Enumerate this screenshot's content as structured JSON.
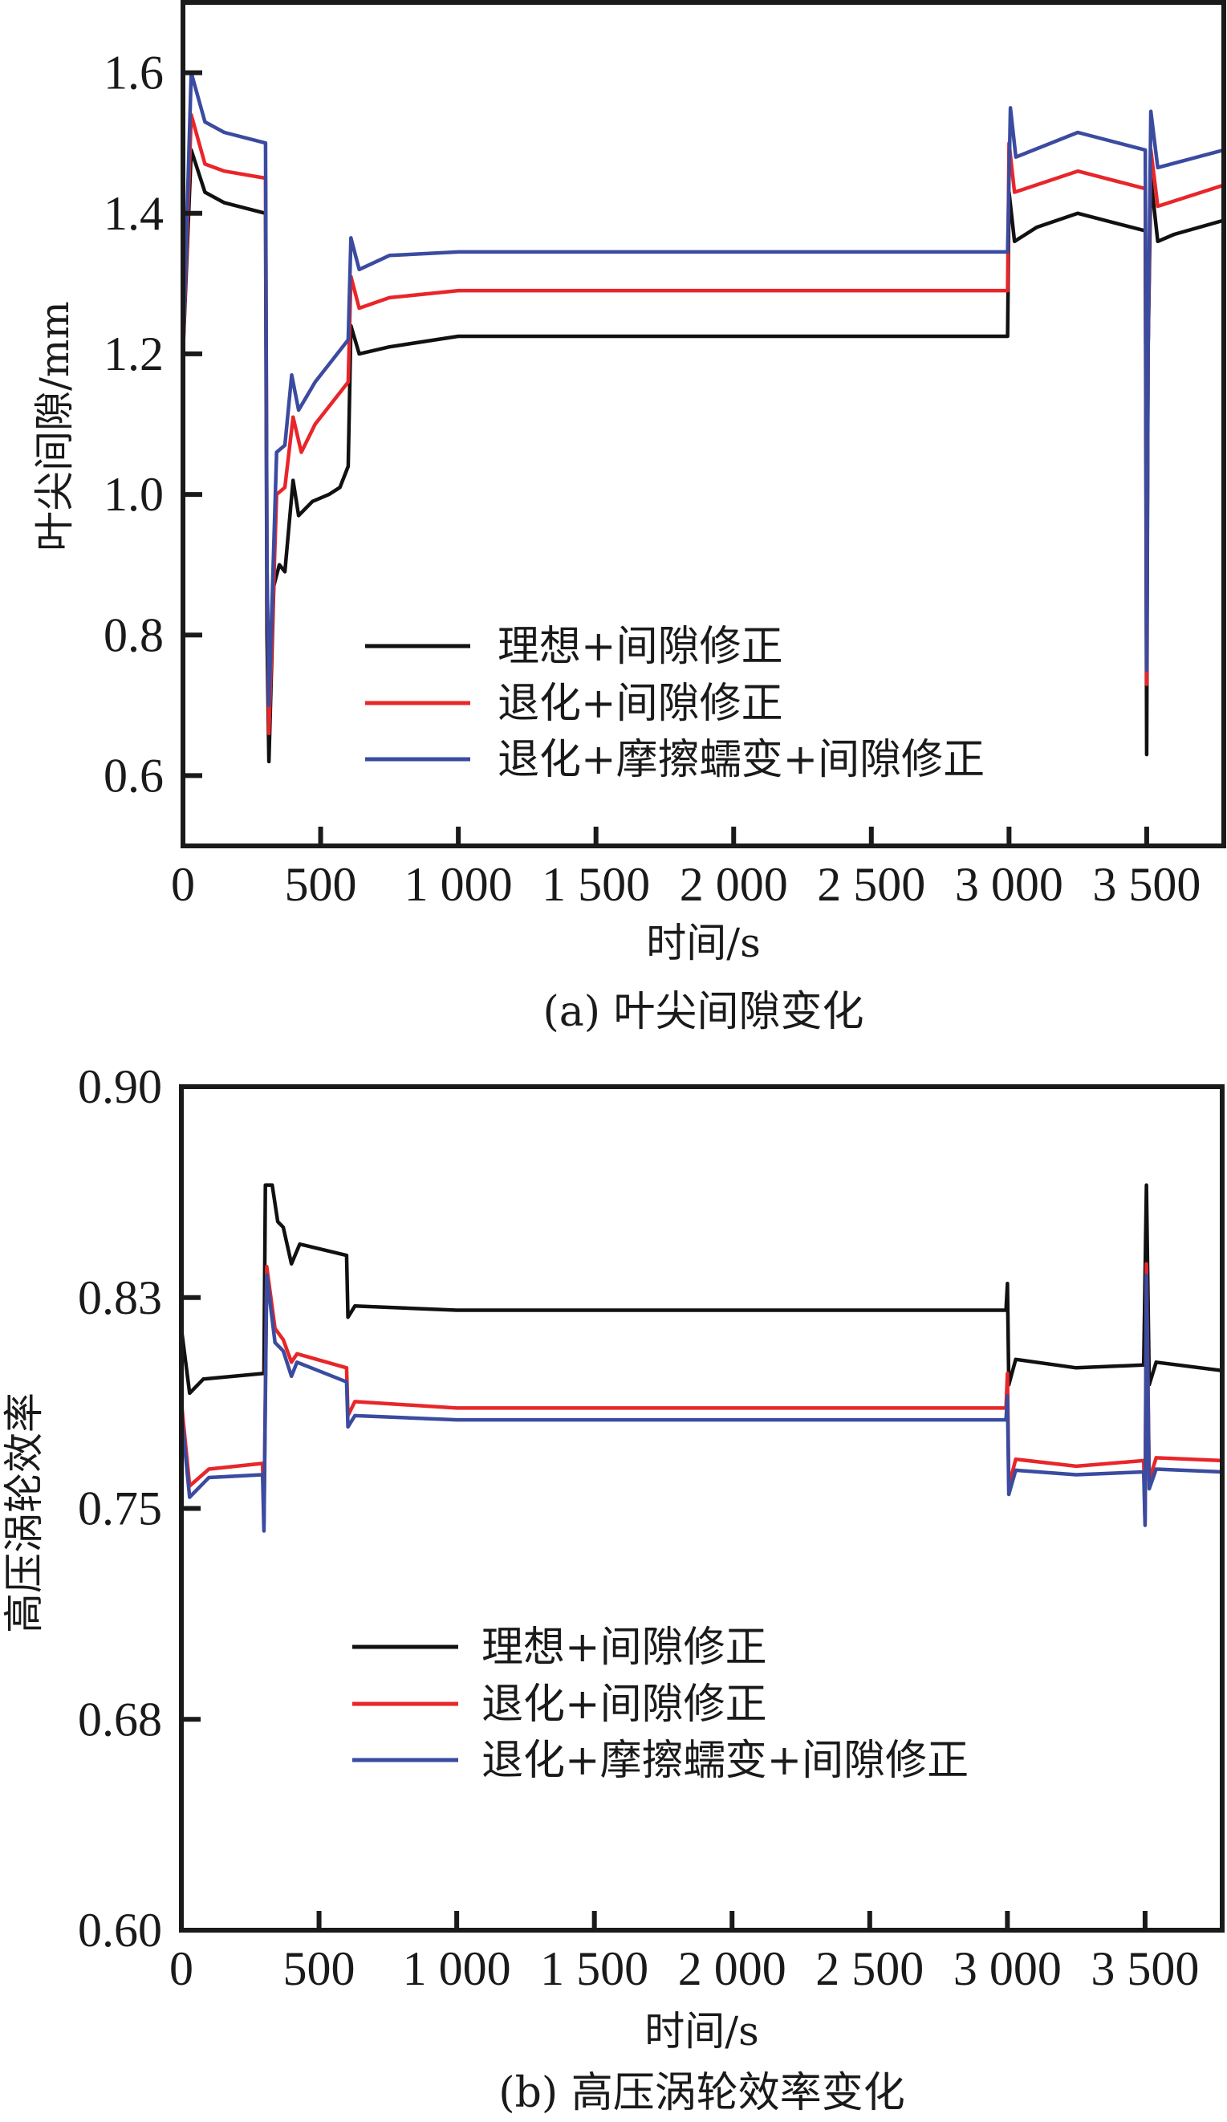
{
  "chart_data": [
    {
      "type": "line",
      "caption": "(a) 叶尖间隙变化",
      "xlabel": "时间/s",
      "ylabel": "叶尖间隙/mm",
      "xlim": [
        0,
        3780
      ],
      "ylim": [
        0.5,
        1.7
      ],
      "xticks": [
        0,
        500,
        1000,
        1500,
        2000,
        2500,
        3000,
        3500
      ],
      "xtick_labels": [
        "0",
        "500",
        "1 000",
        "1 500",
        "2 000",
        "2 500",
        "3 000",
        "3 500"
      ],
      "yticks": [
        0.6,
        0.8,
        1.0,
        1.2,
        1.4,
        1.6
      ],
      "ytick_labels": [
        "0.6",
        "0.8",
        "1.0",
        "1.2",
        "1.4",
        "1.6"
      ],
      "grid": false,
      "legend_position": "lower-center",
      "series": [
        {
          "name": "理想+间隙修正",
          "color": "#111111",
          "x": [
            0,
            30,
            80,
            150,
            300,
            305,
            312,
            330,
            350,
            370,
            400,
            420,
            470,
            530,
            570,
            600,
            610,
            640,
            750,
            1000,
            2995,
            3000,
            3020,
            3100,
            3250,
            3495,
            3500,
            3505,
            3515,
            3540,
            3600,
            3780
          ],
          "y": [
            1.2,
            1.49,
            1.43,
            1.415,
            1.4,
            0.8,
            0.62,
            0.87,
            0.9,
            0.89,
            1.02,
            0.97,
            0.99,
            1.0,
            1.01,
            1.04,
            1.24,
            1.2,
            1.21,
            1.225,
            1.225,
            1.43,
            1.36,
            1.38,
            1.4,
            1.375,
            0.63,
            1.2,
            1.45,
            1.36,
            1.37,
            1.39
          ]
        },
        {
          "name": "退化+间隙修正",
          "color": "#e8262a",
          "x": [
            0,
            30,
            80,
            150,
            300,
            305,
            312,
            340,
            370,
            400,
            430,
            480,
            600,
            610,
            640,
            750,
            1000,
            2995,
            3000,
            3020,
            3250,
            3495,
            3500,
            3505,
            3515,
            3540,
            3780
          ],
          "y": [
            1.2,
            1.54,
            1.47,
            1.46,
            1.45,
            0.9,
            0.66,
            1.0,
            1.01,
            1.11,
            1.06,
            1.1,
            1.16,
            1.31,
            1.265,
            1.28,
            1.29,
            1.29,
            1.5,
            1.43,
            1.46,
            1.435,
            0.73,
            1.2,
            1.49,
            1.41,
            1.44
          ]
        },
        {
          "name": "退化+摩擦蠕变+间隙修正",
          "color": "#3a4ba0",
          "x": [
            0,
            30,
            80,
            150,
            300,
            305,
            312,
            340,
            370,
            395,
            420,
            480,
            600,
            610,
            640,
            750,
            1000,
            2995,
            3005,
            3025,
            3250,
            3495,
            3500,
            3505,
            3515,
            3540,
            3780
          ],
          "y": [
            1.2,
            1.6,
            1.53,
            1.515,
            1.5,
            0.9,
            0.7,
            1.06,
            1.07,
            1.17,
            1.12,
            1.16,
            1.22,
            1.365,
            1.32,
            1.34,
            1.345,
            1.345,
            1.55,
            1.48,
            1.515,
            1.49,
            0.75,
            1.2,
            1.545,
            1.465,
            1.49
          ]
        }
      ]
    },
    {
      "type": "line",
      "caption": "(b) 高压涡轮效率变化",
      "xlabel": "时间/s",
      "ylabel": "高压涡轮效率",
      "xlim": [
        0,
        3780
      ],
      "ylim": [
        0.6,
        0.9
      ],
      "xticks": [
        0,
        500,
        1000,
        1500,
        2000,
        2500,
        3000,
        3500
      ],
      "xtick_labels": [
        "0",
        "500",
        "1 000",
        "1 500",
        "2 000",
        "2 500",
        "3 000",
        "3 500"
      ],
      "yticks": [
        0.6,
        0.675,
        0.75,
        0.825,
        0.9
      ],
      "ytick_labels": [
        "0.60",
        "0.68",
        "0.75",
        "0.83",
        "0.90"
      ],
      "grid": false,
      "legend_position": "center",
      "series": [
        {
          "name": "理想+间隙修正",
          "color": "#111111",
          "x": [
            0,
            30,
            80,
            300,
            305,
            330,
            350,
            370,
            400,
            430,
            600,
            605,
            630,
            1000,
            2995,
            3000,
            3005,
            3030,
            3250,
            3495,
            3505,
            3515,
            3540,
            3780
          ],
          "y": [
            0.814,
            0.791,
            0.796,
            0.798,
            0.865,
            0.865,
            0.852,
            0.85,
            0.837,
            0.844,
            0.84,
            0.818,
            0.822,
            0.8205,
            0.8205,
            0.83,
            0.794,
            0.803,
            0.8,
            0.801,
            0.865,
            0.794,
            0.802,
            0.799
          ]
        },
        {
          "name": "退化+间隙修正",
          "color": "#e8262a",
          "x": [
            0,
            30,
            100,
            295,
            300,
            310,
            340,
            370,
            400,
            420,
            600,
            605,
            630,
            1000,
            2995,
            3000,
            3005,
            3030,
            3250,
            3495,
            3500,
            3505,
            3515,
            3540,
            3780
          ],
          "y": [
            0.788,
            0.758,
            0.764,
            0.766,
            0.745,
            0.836,
            0.814,
            0.81,
            0.802,
            0.805,
            0.8,
            0.783,
            0.788,
            0.7857,
            0.7857,
            0.798,
            0.758,
            0.7675,
            0.765,
            0.767,
            0.745,
            0.837,
            0.76,
            0.768,
            0.767
          ]
        },
        {
          "name": "退化+摩擦蠕变+间隙修正",
          "color": "#3a4ba0",
          "x": [
            0,
            30,
            100,
            295,
            300,
            310,
            340,
            370,
            400,
            420,
            600,
            605,
            630,
            1000,
            2995,
            3000,
            3005,
            3030,
            3250,
            3495,
            3500,
            3505,
            3515,
            3540,
            3780
          ],
          "y": [
            0.784,
            0.754,
            0.761,
            0.762,
            0.742,
            0.833,
            0.809,
            0.806,
            0.797,
            0.802,
            0.795,
            0.779,
            0.783,
            0.7815,
            0.7815,
            0.79,
            0.755,
            0.7636,
            0.762,
            0.763,
            0.744,
            0.833,
            0.757,
            0.764,
            0.763
          ]
        }
      ]
    }
  ]
}
